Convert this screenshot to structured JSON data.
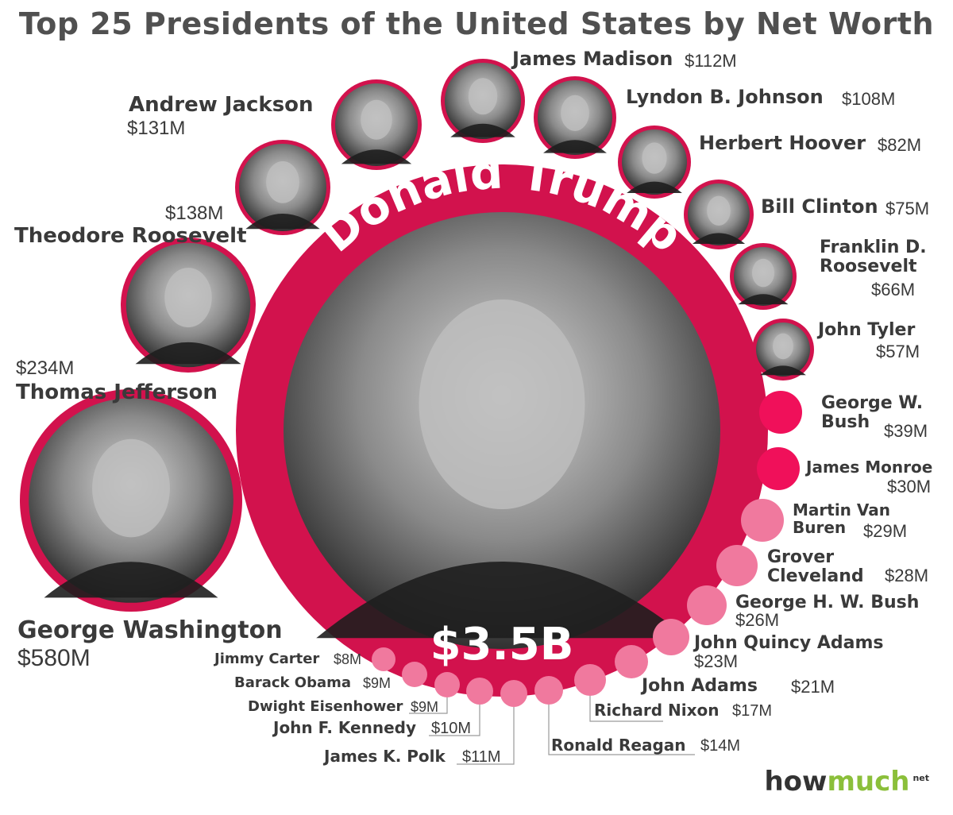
{
  "title": "Top 25 Presidents of the United States by Net Worth",
  "logo": {
    "how": "how",
    "much": "much",
    "net": "net"
  },
  "colors": {
    "ring": "#d2124d",
    "ring_dark": "#b00b3c",
    "light_pink": "#f0799e",
    "photo_bg": "#5a5a5a",
    "text": "#3a3a3a"
  },
  "center": {
    "name": "Donald Trump",
    "value": "$3.5B"
  },
  "chart_data": {
    "type": "bubble",
    "title": "Top 25 Presidents of the United States by Net Worth",
    "unit": "USD millions",
    "series": [
      {
        "values": [
          {
            "name": "Donald Trump",
            "value": 3500,
            "label": "$3.5B"
          },
          {
            "name": "George Washington",
            "value": 580,
            "label": "$580M"
          },
          {
            "name": "Thomas Jefferson",
            "value": 234,
            "label": "$234M"
          },
          {
            "name": "Theodore Roosevelt",
            "value": 138,
            "label": "$138M"
          },
          {
            "name": "Andrew Jackson",
            "value": 131,
            "label": "$131M"
          },
          {
            "name": "James Madison",
            "value": 112,
            "label": "$112M"
          },
          {
            "name": "Lyndon B. Johnson",
            "value": 108,
            "label": "$108M"
          },
          {
            "name": "Herbert Hoover",
            "value": 82,
            "label": "$82M"
          },
          {
            "name": "Bill Clinton",
            "value": 75,
            "label": "$75M"
          },
          {
            "name": "Franklin D. Roosevelt",
            "value": 66,
            "label": "$66M"
          },
          {
            "name": "John Tyler",
            "value": 57,
            "label": "$57M"
          },
          {
            "name": "George W. Bush",
            "value": 39,
            "label": "$39M"
          },
          {
            "name": "James Monroe",
            "value": 30,
            "label": "$30M"
          },
          {
            "name": "Martin Van Buren",
            "value": 29,
            "label": "$29M"
          },
          {
            "name": "Grover Cleveland",
            "value": 28,
            "label": "$28M"
          },
          {
            "name": "George H. W. Bush",
            "value": 26,
            "label": "$26M"
          },
          {
            "name": "John Quincy Adams",
            "value": 23,
            "label": "$23M"
          },
          {
            "name": "John Adams",
            "value": 21,
            "label": "$21M"
          },
          {
            "name": "Richard Nixon",
            "value": 17,
            "label": "$17M"
          },
          {
            "name": "Ronald Reagan",
            "value": 14,
            "label": "$14M"
          },
          {
            "name": "James K. Polk",
            "value": 11,
            "label": "$11M"
          },
          {
            "name": "John F. Kennedy",
            "value": 10,
            "label": "$10M"
          },
          {
            "name": "Dwight Eisenhower",
            "value": 9,
            "label": "$9M"
          },
          {
            "name": "Barack Obama",
            "value": 9,
            "label": "$9M"
          },
          {
            "name": "Jimmy Carter",
            "value": 8,
            "label": "$8M"
          }
        ]
      }
    ]
  }
}
